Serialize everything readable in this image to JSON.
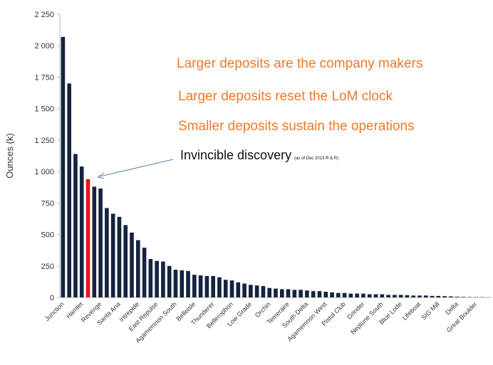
{
  "chart_data": {
    "type": "bar",
    "y_label": "Ounces (k)",
    "annotations": [
      "Larger deposits are the company makers",
      "Larger deposits reset the LoM clock",
      "Smaller deposits sustain the operations"
    ],
    "callout": {
      "text": "Invincible discovery",
      "note": "(as of Dec 2013 R & R)"
    },
    "categories": [
      "Junction",
      null,
      null,
      "Hamlet",
      null,
      null,
      "Revenge",
      null,
      null,
      "Santa Ana",
      null,
      null,
      "Intrepide",
      null,
      null,
      "East Repulse",
      null,
      null,
      "Agamemnon South",
      null,
      null,
      "Belleisle",
      null,
      null,
      "Thunderer",
      null,
      null,
      "Bellerophon",
      null,
      null,
      "Low Grade",
      null,
      null,
      "Orchin",
      null,
      null,
      "Temeraire",
      null,
      null,
      "South Delta",
      null,
      null,
      "Agamemnon West",
      null,
      null,
      "Pistol Club",
      null,
      null,
      "Grinder",
      null,
      null,
      "Neptune South",
      null,
      null,
      "Blue Lode",
      null,
      null,
      "Lifeboat",
      null,
      null,
      "SIG Mill",
      null,
      null,
      "Delta",
      null,
      null,
      "Great Boulder",
      null,
      null
    ],
    "values": [
      2070,
      1700,
      1140,
      1040,
      940,
      880,
      865,
      710,
      665,
      640,
      575,
      515,
      455,
      395,
      305,
      290,
      285,
      250,
      220,
      215,
      210,
      180,
      175,
      170,
      170,
      160,
      140,
      135,
      120,
      110,
      100,
      95,
      90,
      75,
      70,
      65,
      65,
      60,
      60,
      55,
      50,
      50,
      45,
      40,
      35,
      35,
      30,
      30,
      30,
      25,
      25,
      25,
      20,
      20,
      20,
      18,
      15,
      15,
      15,
      12,
      12,
      10,
      8,
      5,
      4,
      3,
      2,
      2,
      1
    ],
    "color": "#15233f",
    "highlight_color": "#e8141c",
    "highlight": [
      4
    ],
    "ylim": [
      0,
      2250
    ],
    "yticks": [
      0,
      250,
      500,
      750,
      {
        "value": 1000,
        "label": "1 000"
      },
      {
        "value": 1250,
        "label": "1 250"
      },
      {
        "value": 1500,
        "label": "1 500"
      },
      {
        "value": 1750,
        "label": "1 750"
      },
      {
        "value": 2000,
        "label": "2 000"
      },
      {
        "value": 2250,
        "label": "2 250"
      }
    ],
    "grid": false
  }
}
